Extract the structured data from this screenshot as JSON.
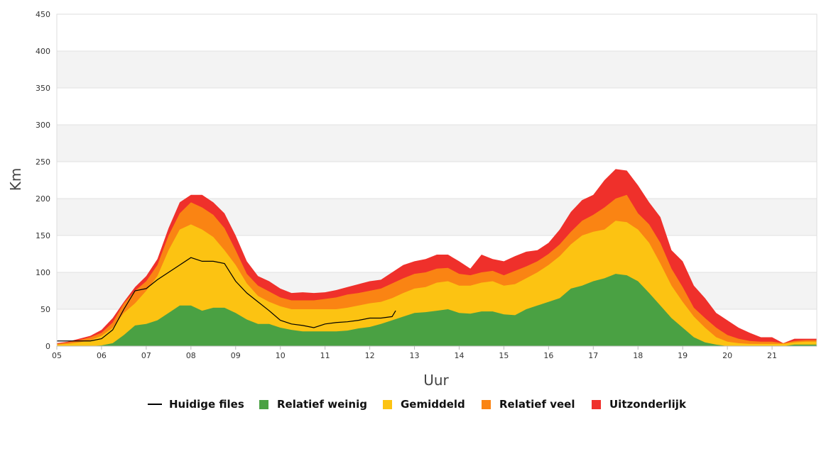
{
  "chart_data": {
    "type": "area",
    "title": "",
    "xlabel": "Uur",
    "ylabel": "Km",
    "xlim": [
      5,
      22
    ],
    "ylim": [
      0,
      450
    ],
    "y_ticks": [
      0,
      50,
      100,
      150,
      200,
      250,
      300,
      350,
      400,
      450
    ],
    "x_ticks": [
      "05",
      "06",
      "07",
      "08",
      "09",
      "10",
      "11",
      "12",
      "13",
      "14",
      "15",
      "16",
      "17",
      "18",
      "19",
      "20",
      "21"
    ],
    "grid": "horizontal bands",
    "legend_position": "bottom",
    "x": [
      5.0,
      5.25,
      5.5,
      5.75,
      6.0,
      6.25,
      6.5,
      6.75,
      7.0,
      7.25,
      7.5,
      7.75,
      8.0,
      8.25,
      8.5,
      8.75,
      9.0,
      9.25,
      9.5,
      9.75,
      10.0,
      10.25,
      10.5,
      10.75,
      11.0,
      11.25,
      11.5,
      11.75,
      12.0,
      12.25,
      12.5,
      12.75,
      13.0,
      13.25,
      13.5,
      13.75,
      14.0,
      14.25,
      14.5,
      14.75,
      15.0,
      15.25,
      15.5,
      15.75,
      16.0,
      16.25,
      16.5,
      16.75,
      17.0,
      17.25,
      17.5,
      17.75,
      18.0,
      18.25,
      18.5,
      18.75,
      19.0,
      19.25,
      19.5,
      19.75,
      20.0,
      20.25,
      20.5,
      20.75,
      21.0,
      21.25,
      21.5,
      21.75,
      22.0
    ],
    "series": [
      {
        "name": "Relatief weinig",
        "color": "#4aa143",
        "values": [
          0,
          0,
          0,
          0,
          1,
          4,
          15,
          28,
          30,
          35,
          45,
          55,
          55,
          48,
          52,
          52,
          45,
          36,
          30,
          30,
          25,
          22,
          20,
          20,
          20,
          20,
          21,
          24,
          26,
          30,
          35,
          40,
          45,
          46,
          48,
          50,
          45,
          44,
          47,
          47,
          43,
          42,
          50,
          55,
          60,
          65,
          78,
          82,
          88,
          92,
          98,
          96,
          88,
          72,
          55,
          38,
          25,
          12,
          5,
          2,
          0,
          0,
          0,
          0,
          0,
          0,
          2,
          2,
          2
        ]
      },
      {
        "name": "Gemiddeld",
        "color": "#fcc312",
        "values": [
          2,
          3,
          5,
          8,
          14,
          25,
          45,
          58,
          75,
          95,
          130,
          158,
          165,
          158,
          148,
          130,
          110,
          85,
          68,
          60,
          54,
          50,
          50,
          50,
          50,
          50,
          52,
          55,
          58,
          60,
          65,
          72,
          78,
          80,
          86,
          88,
          82,
          82,
          86,
          88,
          82,
          84,
          92,
          100,
          110,
          122,
          138,
          150,
          155,
          158,
          170,
          168,
          158,
          140,
          112,
          82,
          60,
          40,
          25,
          12,
          6,
          4,
          3,
          3,
          3,
          3,
          5,
          6,
          6
        ]
      },
      {
        "name": "Relatief veel",
        "color": "#fa8413",
        "values": [
          3,
          5,
          8,
          12,
          18,
          32,
          58,
          75,
          88,
          110,
          150,
          180,
          195,
          188,
          178,
          160,
          130,
          98,
          82,
          74,
          66,
          62,
          62,
          62,
          64,
          66,
          70,
          72,
          75,
          78,
          85,
          92,
          98,
          100,
          105,
          106,
          98,
          96,
          100,
          102,
          96,
          102,
          108,
          115,
          125,
          138,
          155,
          170,
          178,
          188,
          200,
          205,
          180,
          165,
          140,
          105,
          80,
          52,
          38,
          25,
          15,
          10,
          7,
          6,
          6,
          4,
          7,
          8,
          8
        ]
      },
      {
        "name": "Uitzonderlijk",
        "color": "#ef302b",
        "values": [
          4,
          6,
          10,
          14,
          22,
          38,
          60,
          80,
          95,
          118,
          160,
          195,
          205,
          205,
          195,
          180,
          150,
          115,
          95,
          88,
          78,
          72,
          73,
          72,
          73,
          76,
          80,
          84,
          88,
          90,
          100,
          110,
          115,
          118,
          124,
          124,
          115,
          105,
          124,
          118,
          115,
          122,
          128,
          130,
          140,
          158,
          182,
          198,
          205,
          225,
          240,
          238,
          218,
          195,
          175,
          130,
          115,
          82,
          65,
          45,
          35,
          25,
          18,
          12,
          12,
          4,
          10,
          10,
          10
        ]
      }
    ],
    "current_line": {
      "name": "Huidige files",
      "color": "#000000",
      "x": [
        5.0,
        5.25,
        5.5,
        5.75,
        6.0,
        6.25,
        6.5,
        6.75,
        7.0,
        7.25,
        7.5,
        7.75,
        8.0,
        8.25,
        8.5,
        8.75,
        9.0,
        9.25,
        9.5,
        9.75,
        10.0,
        10.25,
        10.5,
        10.75,
        11.0,
        11.25,
        11.5,
        11.75,
        12.0,
        12.25,
        12.5,
        12.58
      ],
      "values": [
        7,
        7,
        7,
        7,
        10,
        22,
        50,
        75,
        78,
        90,
        100,
        110,
        120,
        115,
        115,
        112,
        88,
        72,
        60,
        48,
        35,
        30,
        28,
        25,
        30,
        32,
        33,
        35,
        38,
        38,
        40,
        48
      ]
    }
  },
  "legend": [
    {
      "label": "Huidige files",
      "kind": "line",
      "color": "#000000"
    },
    {
      "label": "Relatief weinig",
      "kind": "box",
      "color": "#4aa143"
    },
    {
      "label": "Gemiddeld",
      "kind": "box",
      "color": "#fcc312"
    },
    {
      "label": "Relatief veel",
      "kind": "box",
      "color": "#fa8413"
    },
    {
      "label": "Uitzonderlijk",
      "kind": "box",
      "color": "#ef302b"
    }
  ]
}
